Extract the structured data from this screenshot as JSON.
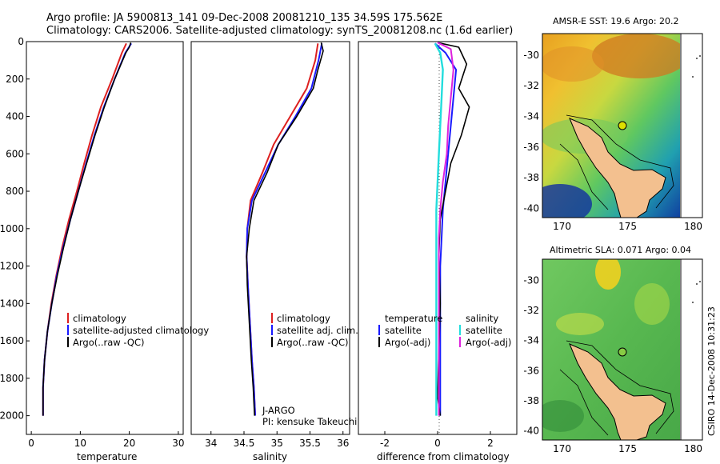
{
  "title_line1": "Argo profile: JA 5900813_141 09-Dec-2008 20081210_135 34.59S 175.562E",
  "title_line2": "Climatology: CARS2006. Satellite-adjusted climatology: synTS_20081208.nc (1.6d earlier)",
  "side_stamp": "CSIRO 14-Dec-2008 10:31:23",
  "colors": {
    "climatology": "#dd2020",
    "satellite": "#1a1aff",
    "argo": "#000000",
    "salinity_satellite": "#22dddd",
    "salinity_argo": "#dd22dd",
    "land": "#f3c08f"
  },
  "legend_temp": {
    "climatology": "climatology",
    "satellite": "satellite-adjusted climatology",
    "argo": "Argo(..raw -QC)"
  },
  "legend_sal": {
    "climatology": "climatology",
    "satellite": "satellite adj. clim.",
    "argo": "Argo(..raw -QC)"
  },
  "legend_diff": {
    "temp_header": "temperature",
    "sal_header": "salinity",
    "temp_sat": "satellite",
    "temp_argo": "Argo(-adj)",
    "sal_sat": "satellite",
    "sal_argo": "Argo(-adj)"
  },
  "float_info": {
    "program": "J-ARGO",
    "pi": "PI: kensuke Takeuchi"
  },
  "map_sst": {
    "title": "AMSR-E SST: 19.6 Argo: 20.2"
  },
  "map_sla": {
    "title": "Altimetric SLA: 0.071 Argo: 0.04"
  },
  "chart_data": [
    {
      "type": "line",
      "xlabel": "temperature",
      "ylabel": "",
      "xlim": [
        -1,
        31
      ],
      "ylim": [
        2100,
        0
      ],
      "xticks": [
        0,
        10,
        20,
        30
      ],
      "yticks": [
        0,
        200,
        400,
        600,
        800,
        1000,
        1200,
        1400,
        1600,
        1800,
        2000
      ],
      "series": [
        {
          "name": "climatology",
          "x": [
            19.4,
            18.5,
            16.5,
            14.2,
            12.4,
            10.8,
            9.3,
            7.7,
            6.3,
            5.1,
            4.1,
            3.3,
            2.7,
            2.4,
            2.4
          ],
          "y": [
            10,
            60,
            200,
            350,
            500,
            650,
            800,
            950,
            1100,
            1250,
            1400,
            1550,
            1700,
            1850,
            2000
          ]
        },
        {
          "name": "satellite-adjusted climatology",
          "x": [
            20.4,
            19.2,
            17.0,
            14.8,
            12.9,
            11.2,
            9.6,
            8.0,
            6.5,
            5.2,
            4.2,
            3.3,
            2.7,
            2.4,
            2.4
          ],
          "y": [
            10,
            60,
            200,
            350,
            500,
            650,
            800,
            950,
            1100,
            1250,
            1400,
            1550,
            1700,
            1850,
            2000
          ]
        },
        {
          "name": "Argo(..raw -QC)",
          "x": [
            20.3,
            20.0,
            19.3,
            17.0,
            14.9,
            13.0,
            11.3,
            9.6,
            8.0,
            6.6,
            5.3,
            4.2,
            3.3,
            2.7,
            2.4,
            2.4
          ],
          "y": [
            5,
            30,
            60,
            200,
            350,
            500,
            650,
            800,
            950,
            1100,
            1250,
            1400,
            1550,
            1700,
            1850,
            2000
          ]
        }
      ]
    },
    {
      "type": "line",
      "xlabel": "salinity",
      "ylabel": "",
      "xlim": [
        33.7,
        36.1
      ],
      "ylim": [
        2100,
        0
      ],
      "xticks": [
        34,
        34.5,
        35,
        35.5,
        36
      ],
      "series": [
        {
          "name": "climatology",
          "x": [
            35.62,
            35.58,
            35.45,
            35.2,
            34.95,
            34.78,
            34.6,
            34.55,
            34.54,
            34.56,
            34.59,
            34.62,
            34.65,
            34.67
          ],
          "y": [
            10,
            100,
            250,
            400,
            550,
            700,
            850,
            1000,
            1150,
            1300,
            1500,
            1700,
            1850,
            2000
          ]
        },
        {
          "name": "satellite adj. clim.",
          "x": [
            35.68,
            35.63,
            35.52,
            35.28,
            35.02,
            34.82,
            34.62,
            34.55,
            34.54,
            34.56,
            34.59,
            34.62,
            34.65,
            34.67
          ],
          "y": [
            10,
            100,
            250,
            400,
            550,
            700,
            850,
            1000,
            1150,
            1300,
            1500,
            1700,
            1850,
            2000
          ]
        },
        {
          "name": "Argo(..raw -QC)",
          "x": [
            35.67,
            35.7,
            35.62,
            35.55,
            35.3,
            35.02,
            34.85,
            34.65,
            34.58,
            34.54,
            34.55,
            34.58,
            34.61,
            34.64,
            34.66
          ],
          "y": [
            5,
            50,
            150,
            250,
            400,
            550,
            700,
            850,
            1000,
            1150,
            1300,
            1500,
            1700,
            1850,
            2000
          ]
        }
      ]
    },
    {
      "type": "line",
      "xlabel": "difference from climatology",
      "ylabel": "",
      "xlim": [
        -3,
        3
      ],
      "ylim": [
        2100,
        0
      ],
      "xticks": [
        -2,
        0,
        2
      ],
      "series": [
        {
          "name": "temperature satellite",
          "x": [
            -0.1,
            0.3,
            0.7,
            0.6,
            0.5,
            0.4,
            0.3,
            0.2,
            0.15,
            0.1,
            0.1,
            0.1,
            0.1,
            0.1
          ],
          "y": [
            10,
            60,
            150,
            300,
            450,
            600,
            750,
            900,
            1050,
            1200,
            1400,
            1600,
            1800,
            2000
          ]
        },
        {
          "name": "temperature Argo(-adj)",
          "x": [
            0.0,
            0.8,
            1.1,
            0.8,
            1.2,
            0.9,
            0.5,
            0.3,
            0.1,
            0.05,
            0.1,
            0.05,
            0.0,
            0.1
          ],
          "y": [
            5,
            30,
            120,
            250,
            350,
            500,
            650,
            800,
            950,
            1150,
            1400,
            1650,
            1900,
            2000
          ]
        },
        {
          "name": "salinity satellite",
          "x": [
            -0.1,
            0.1,
            0.2,
            0.15,
            0.1,
            0.05,
            0.0,
            -0.05,
            -0.05,
            -0.05,
            -0.05,
            -0.05,
            -0.05,
            -0.05
          ],
          "y": [
            10,
            60,
            150,
            300,
            450,
            600,
            750,
            900,
            1050,
            1200,
            1400,
            1600,
            1800,
            2000
          ]
        },
        {
          "name": "salinity Argo(-adj)",
          "x": [
            0.0,
            0.5,
            0.6,
            0.5,
            0.4,
            0.35,
            0.2,
            0.1,
            0.05,
            0.05,
            0.05,
            0.05,
            0.05,
            0.05
          ],
          "y": [
            5,
            40,
            150,
            300,
            450,
            600,
            750,
            900,
            1050,
            1250,
            1450,
            1650,
            1850,
            2000
          ]
        }
      ]
    },
    {
      "type": "heatmap",
      "title": "AMSR-E SST: 19.6 Argo: 20.2",
      "xlim": [
        168.5,
        180.7
      ],
      "ylim": [
        -40.6,
        -28.6
      ],
      "xticks": [
        170,
        175,
        180
      ],
      "yticks": [
        -30,
        -32,
        -34,
        -36,
        -38,
        -40
      ],
      "argo_position": {
        "lon": 175.562,
        "lat": -34.59
      }
    },
    {
      "type": "heatmap",
      "title": "Altimetric SLA: 0.071 Argo: 0.04",
      "xlim": [
        168.5,
        180.7
      ],
      "ylim": [
        -40.6,
        -28.6
      ],
      "xticks": [
        170,
        175,
        180
      ],
      "yticks": [
        -30,
        -32,
        -34,
        -36,
        -38,
        -40
      ],
      "argo_position": {
        "lon": 175.562,
        "lat": -34.59
      }
    }
  ]
}
